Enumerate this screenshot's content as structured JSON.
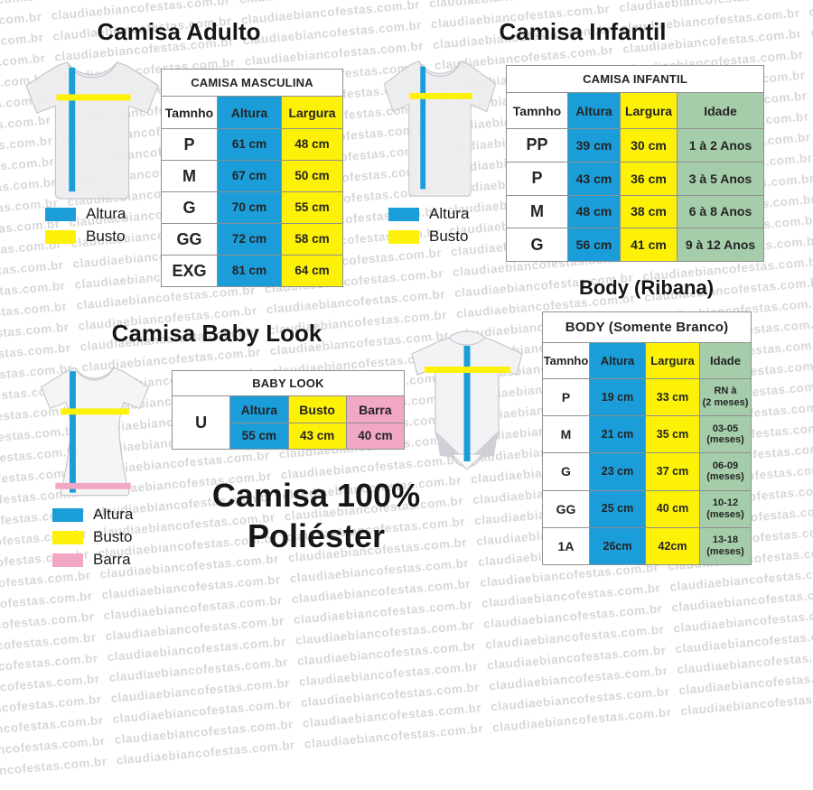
{
  "watermark": {
    "text": "claudiaebiancofestas.com.br"
  },
  "colors": {
    "blue": "#1b9dd9",
    "yellow": "#fdf107",
    "green": "#a5cda9",
    "pink": "#f2a7c5",
    "shirt_fill": "#ededef",
    "shirt_stroke": "#c6c6cc"
  },
  "sections": {
    "adulto": {
      "title": "Camisa Adulto",
      "legend": [
        {
          "label": "Altura",
          "color": "#1b9dd9"
        },
        {
          "label": "Busto",
          "color": "#fdf107"
        }
      ],
      "table": {
        "title": "CAMISA MASCULINA",
        "columns": [
          {
            "label": "Tamnho",
            "bg": "#ffffff"
          },
          {
            "label": "Altura",
            "bg": "#1b9dd9"
          },
          {
            "label": "Largura",
            "bg": "#fdf107"
          }
        ],
        "rows": [
          [
            "P",
            "61 cm",
            "48 cm"
          ],
          [
            "M",
            "67 cm",
            "50 cm"
          ],
          [
            "G",
            "70 cm",
            "55 cm"
          ],
          [
            "GG",
            "72 cm",
            "58 cm"
          ],
          [
            "EXG",
            "81 cm",
            "64 cm"
          ]
        ]
      }
    },
    "infantil": {
      "title": "Camisa Infantil",
      "legend": [
        {
          "label": "Altura",
          "color": "#1b9dd9"
        },
        {
          "label": "Busto",
          "color": "#fdf107"
        }
      ],
      "table": {
        "title": "CAMISA INFANTIL",
        "columns": [
          {
            "label": "Tamnho",
            "bg": "#ffffff"
          },
          {
            "label": "Altura",
            "bg": "#1b9dd9"
          },
          {
            "label": "Largura",
            "bg": "#fdf107"
          },
          {
            "label": "Idade",
            "bg": "#a5cda9"
          }
        ],
        "rows": [
          [
            "PP",
            "39 cm",
            "30 cm",
            "1 à 2 Anos"
          ],
          [
            "P",
            "43 cm",
            "36 cm",
            "3 à 5 Anos"
          ],
          [
            "M",
            "48 cm",
            "38 cm",
            "6 à 8 Anos"
          ],
          [
            "G",
            "56 cm",
            "41 cm",
            "9 à 12 Anos"
          ]
        ]
      }
    },
    "babylook": {
      "title": "Camisa Baby Look",
      "legend": [
        {
          "label": "Altura",
          "color": "#1b9dd9"
        },
        {
          "label": "Busto",
          "color": "#fdf107"
        },
        {
          "label": "Barra",
          "color": "#f2a7c5"
        }
      ],
      "table": {
        "title": "BABY LOOK",
        "size_label": "U",
        "columns": [
          {
            "label": "Altura",
            "bg": "#1b9dd9"
          },
          {
            "label": "Busto",
            "bg": "#fdf107"
          },
          {
            "label": "Barra",
            "bg": "#f2a7c5"
          }
        ],
        "values": [
          "55 cm",
          "43 cm",
          "40 cm"
        ]
      }
    },
    "body": {
      "title": "Body (Ribana)",
      "table": {
        "title": "BODY (Somente Branco)",
        "columns": [
          {
            "label": "Tamnho",
            "bg": "#ffffff"
          },
          {
            "label": "Altura",
            "bg": "#1b9dd9"
          },
          {
            "label": "Largura",
            "bg": "#fdf107"
          },
          {
            "label": "Idade",
            "bg": "#a5cda9"
          }
        ],
        "rows": [
          [
            "P",
            "19 cm",
            "33 cm",
            "RN à\n(2 meses)"
          ],
          [
            "M",
            "21 cm",
            "35 cm",
            "03-05\n(meses)"
          ],
          [
            "G",
            "23 cm",
            "37 cm",
            "06-09\n(meses)"
          ],
          [
            "GG",
            "25 cm",
            "40 cm",
            "10-12\n(meses)"
          ],
          [
            "1A",
            "26cm",
            "42cm",
            "13-18\n(meses)"
          ]
        ]
      }
    },
    "footer": {
      "line1": "Camisa 100%",
      "line2": "Poliéster"
    }
  }
}
